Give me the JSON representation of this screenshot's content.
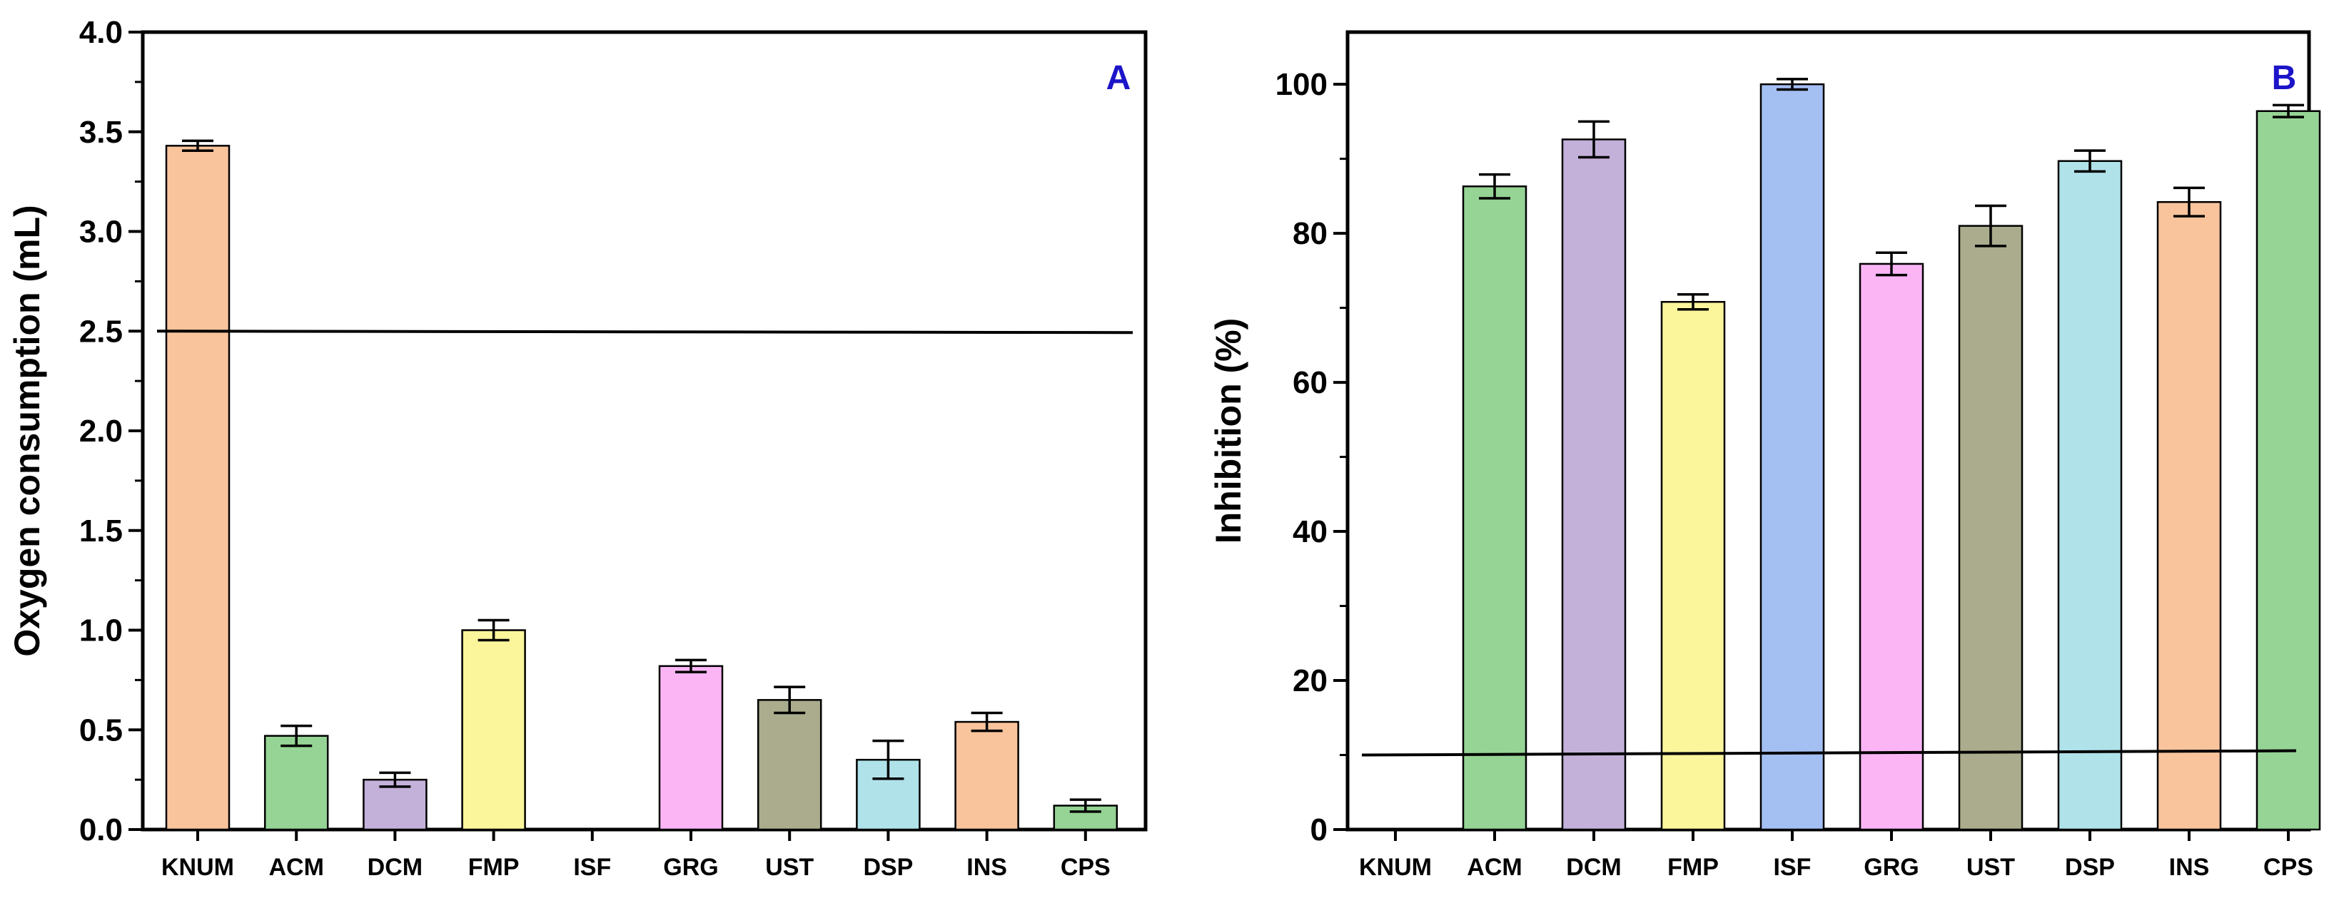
{
  "chart_data": [
    {
      "type": "bar",
      "panel_label": "A",
      "panel_label_color": "#1c14c8",
      "title": "",
      "xlabel": "",
      "ylabel": "Oxygen consumption (mL)",
      "ylim": [
        0,
        4.0
      ],
      "yticks": [
        0.0,
        0.5,
        1.0,
        1.5,
        2.0,
        2.5,
        3.0,
        3.5,
        4.0
      ],
      "ytick_labels": [
        "0.0",
        "0.5",
        "1.0",
        "1.5",
        "2.0",
        "2.5",
        "3.0",
        "3.5",
        "4.0"
      ],
      "categories": [
        "KNUM",
        "ACM",
        "DCM",
        "FMP",
        "ISF",
        "GRG",
        "UST",
        "DSP",
        "INS",
        "CPS"
      ],
      "values": [
        3.43,
        0.47,
        0.25,
        1.0,
        0.0,
        0.82,
        0.65,
        0.35,
        0.54,
        0.12
      ],
      "errors": [
        0.025,
        0.05,
        0.035,
        0.05,
        0.0,
        0.03,
        0.065,
        0.095,
        0.045,
        0.03
      ],
      "colors": [
        "#f9c49c",
        "#96d495",
        "#c4b1d9",
        "#fbf59c",
        "#a4bff2",
        "#fbb5f5",
        "#aaac8d",
        "#b0e2ea",
        "#f9c49c",
        "#96d495"
      ],
      "reference_line": 2.5,
      "grid": false
    },
    {
      "type": "bar",
      "panel_label": "B",
      "panel_label_color": "#1c14c8",
      "title": "",
      "xlabel": "",
      "ylabel": "Inhibition (%)",
      "ylim": [
        0,
        107
      ],
      "yticks": [
        0,
        20,
        40,
        60,
        80,
        100
      ],
      "ytick_labels": [
        "0",
        "20",
        "40",
        "60",
        "80",
        "100"
      ],
      "categories": [
        "KNUM",
        "ACM",
        "DCM",
        "FMP",
        "ISF",
        "GRG",
        "UST",
        "DSP",
        "INS",
        "CPS"
      ],
      "values": [
        0,
        86.3,
        92.6,
        70.8,
        100,
        75.9,
        81,
        89.7,
        84.2,
        96.4
      ],
      "errors": [
        0,
        1.6,
        2.4,
        1.0,
        0.7,
        1.5,
        2.7,
        1.4,
        1.9,
        0.8
      ],
      "colors": [
        "#f9c49c",
        "#96d495",
        "#c4b1d9",
        "#fbf59c",
        "#a4bff2",
        "#fbb5f5",
        "#aaac8d",
        "#b0e2ea",
        "#f9c49c",
        "#96d495"
      ],
      "reference_line": 10,
      "grid": false
    }
  ]
}
